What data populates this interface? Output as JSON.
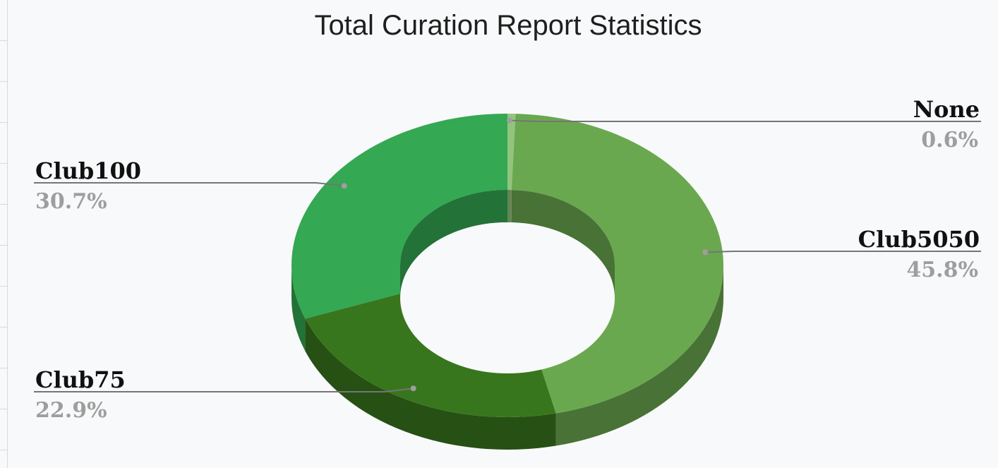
{
  "chart_data": {
    "type": "pie",
    "style": "3d-donut",
    "title": "Total Curation Report Statistics",
    "slices": [
      {
        "label": "None",
        "value": 0.6,
        "display": "0.6%",
        "color": "#93c47d",
        "side": "right"
      },
      {
        "label": "Club5050",
        "value": 45.8,
        "display": "45.8%",
        "color": "#6aa84f",
        "side": "right"
      },
      {
        "label": "Club75",
        "value": 22.9,
        "display": "22.9%",
        "color": "#38761d",
        "side": "left"
      },
      {
        "label": "Club100",
        "value": 30.7,
        "display": "30.7%",
        "color": "#34a853",
        "side": "left"
      }
    ],
    "legend": "none",
    "grid": false
  }
}
